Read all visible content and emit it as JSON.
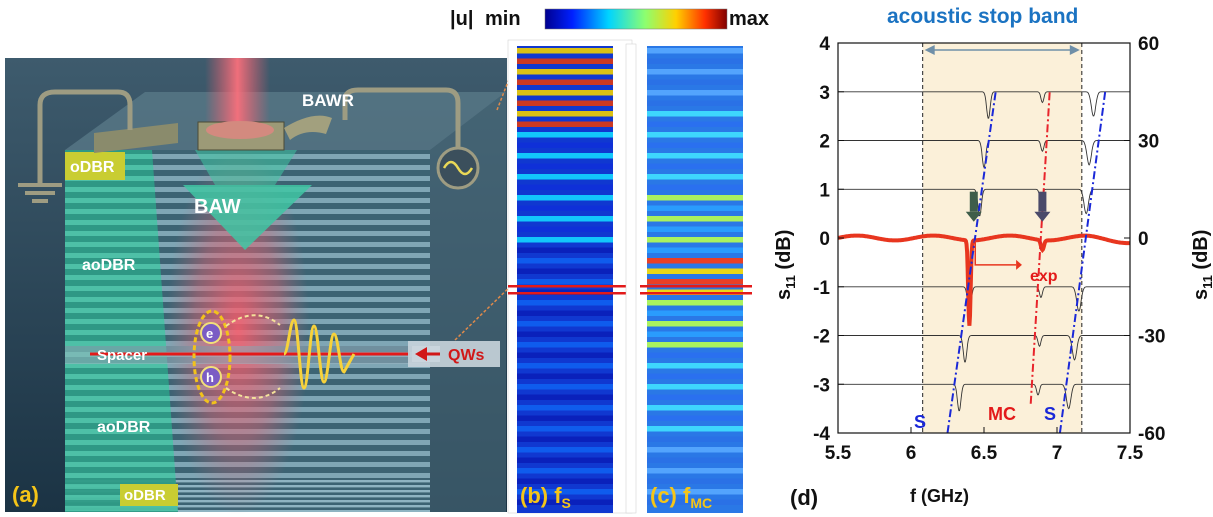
{
  "panel_a": {
    "letter": "(a)",
    "labels": {
      "bawr": "BAWR",
      "baw": "BAW",
      "odbr_top": "oDBR",
      "aodbr_top": "aoDBR",
      "spacer": "Spacer",
      "aodbr_bottom": "aoDBR",
      "odbr_bottom": "oDBR",
      "qws": "QWs",
      "electron": "e",
      "hole": "h"
    }
  },
  "colorbar": {
    "quantity": "|u|",
    "min": "min",
    "max": "max"
  },
  "panel_b": {
    "letter": "(b)",
    "f": "f",
    "sub": "S"
  },
  "panel_c": {
    "letter": "(c)",
    "f": "f",
    "sub": "MC"
  },
  "panel_d": {
    "letter": "(d)",
    "stop_band_title": "acoustic stop band",
    "xlabel": "f (GHz)",
    "ylabel_left": "s",
    "ylabel_left_sub": "11",
    "ylabel_left_unit": "(dB)",
    "ylabel_right": "s",
    "ylabel_right_sub": "11",
    "ylabel_right_unit": "(dB)",
    "annotation_exp": "exp",
    "annotation_S_left": "S",
    "annotation_MC": "MC",
    "annotation_S_right": "S",
    "x_ticks": [
      "5.5",
      "6",
      "6.5",
      "7",
      "7.5"
    ],
    "y_left_ticks": [
      "4",
      "3",
      "2",
      "1",
      "0",
      "-1",
      "-2",
      "-3",
      "-4"
    ],
    "y_right_ticks": [
      "60",
      "30",
      "0",
      "-30",
      "-60"
    ]
  },
  "chart_data": {
    "type": "line",
    "xlim": [
      5.5,
      7.5
    ],
    "ylim": [
      -4,
      4
    ],
    "y2lim": [
      -60,
      60
    ],
    "stop_band": [
      6.08,
      7.17
    ],
    "simulated_traces": [
      {
        "offset": 3.0,
        "s_dip": 6.53,
        "mc_dip": 6.9,
        "s2_dip": 7.25
      },
      {
        "offset": 2.0,
        "s_dip": 6.5,
        "mc_dip": 6.9,
        "s2_dip": 7.22
      },
      {
        "offset": 1.0,
        "s_dip": 6.47,
        "mc_dip": 6.89,
        "s2_dip": 7.2
      },
      {
        "offset": -1.0,
        "s_dip": 6.4,
        "mc_dip": 6.89,
        "s2_dip": 7.15
      },
      {
        "offset": -2.0,
        "s_dip": 6.37,
        "mc_dip": 6.88,
        "s2_dip": 7.12
      },
      {
        "offset": -3.0,
        "s_dip": 6.33,
        "mc_dip": 6.87,
        "s2_dip": 7.08
      },
      {
        "offset": -4.0,
        "s_dip": 6.28,
        "mc_dip": 6.86,
        "s2_dip": 7.04
      }
    ],
    "experimental": {
      "offset": 0.0,
      "dip_positions": [
        6.4,
        6.9
      ],
      "main_dip_depth": -1.75
    },
    "guide_lines": {
      "S_left": [
        [
          6.25,
          -4.0
        ],
        [
          6.58,
          3.0
        ]
      ],
      "MC": [
        [
          6.82,
          -3.4
        ],
        [
          6.95,
          3.0
        ]
      ],
      "S_right": [
        [
          7.02,
          -4.0
        ],
        [
          7.33,
          3.0
        ]
      ]
    },
    "arrows_at_x": [
      6.43,
      6.9
    ]
  },
  "colors": {
    "stop_band_fill": "#fbf0d9",
    "exp_trace": "#e8361f",
    "guide_S": "#1a28d8",
    "guide_MC": "#e8242b",
    "title_blue": "#1b73c2",
    "label_gold": "#f5c518",
    "odbr_yellow": "#c9cd32"
  }
}
